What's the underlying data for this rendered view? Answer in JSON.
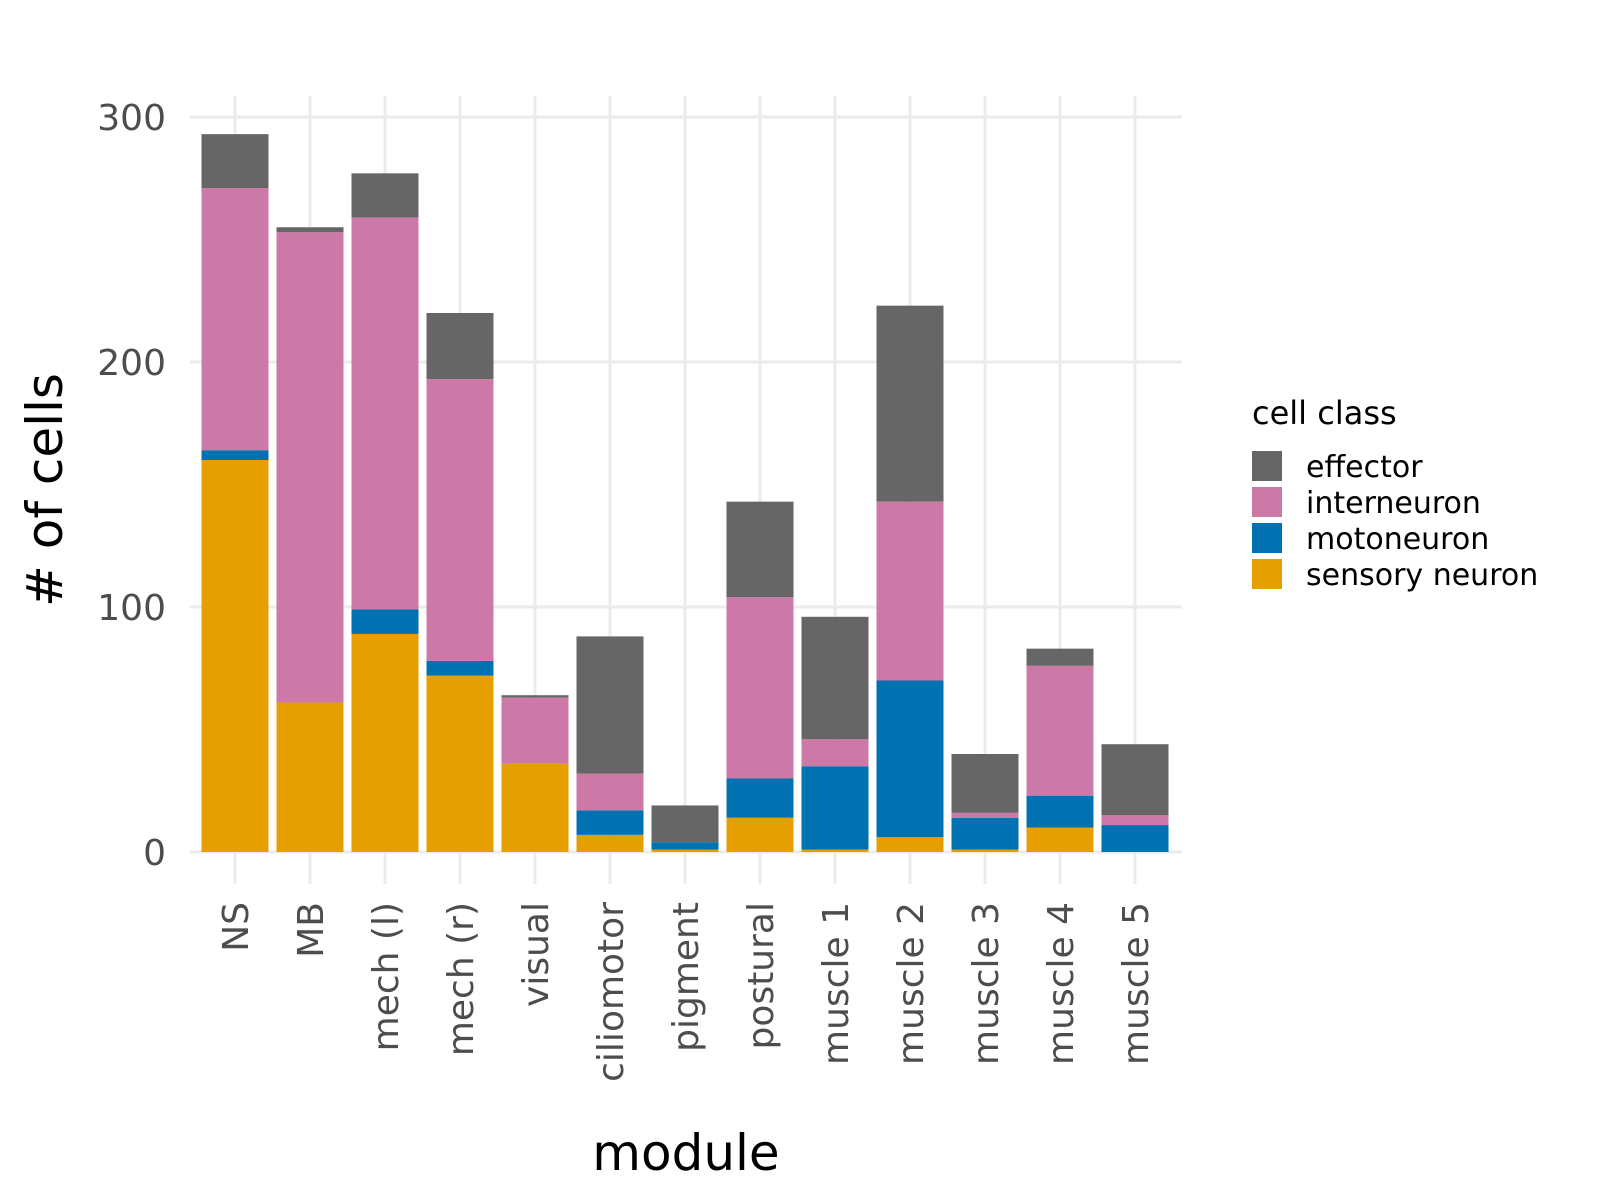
{
  "chart_data": {
    "type": "bar",
    "stacked": true,
    "title": "",
    "xlabel": "module",
    "ylabel": "# of cells",
    "ylim": [
      0,
      300
    ],
    "yticks": [
      0,
      100,
      200,
      300
    ],
    "grid": true,
    "legend_title": "cell class",
    "legend_position": "right",
    "categories": [
      "NS",
      "MB",
      "mech (l)",
      "mech (r)",
      "visual",
      "ciliomotor",
      "pigment",
      "postural",
      "muscle 1",
      "muscle 2",
      "muscle 3",
      "muscle 4",
      "muscle 5"
    ],
    "series": [
      {
        "name": "sensory neuron",
        "color": "#E69F00",
        "values": [
          160,
          61,
          89,
          72,
          36,
          7,
          1,
          14,
          1,
          6,
          1,
          10,
          0
        ]
      },
      {
        "name": "motoneuron",
        "color": "#0072B2",
        "values": [
          4,
          0,
          10,
          6,
          0,
          10,
          3,
          16,
          34,
          64,
          13,
          13,
          11
        ]
      },
      {
        "name": "interneuron",
        "color": "#CC79A7",
        "values": [
          107,
          192,
          160,
          115,
          27,
          15,
          0,
          74,
          11,
          73,
          2,
          53,
          4
        ]
      },
      {
        "name": "effector",
        "color": "#666666",
        "values": [
          22,
          2,
          18,
          27,
          1,
          56,
          15,
          39,
          50,
          80,
          24,
          7,
          29
        ]
      }
    ]
  }
}
